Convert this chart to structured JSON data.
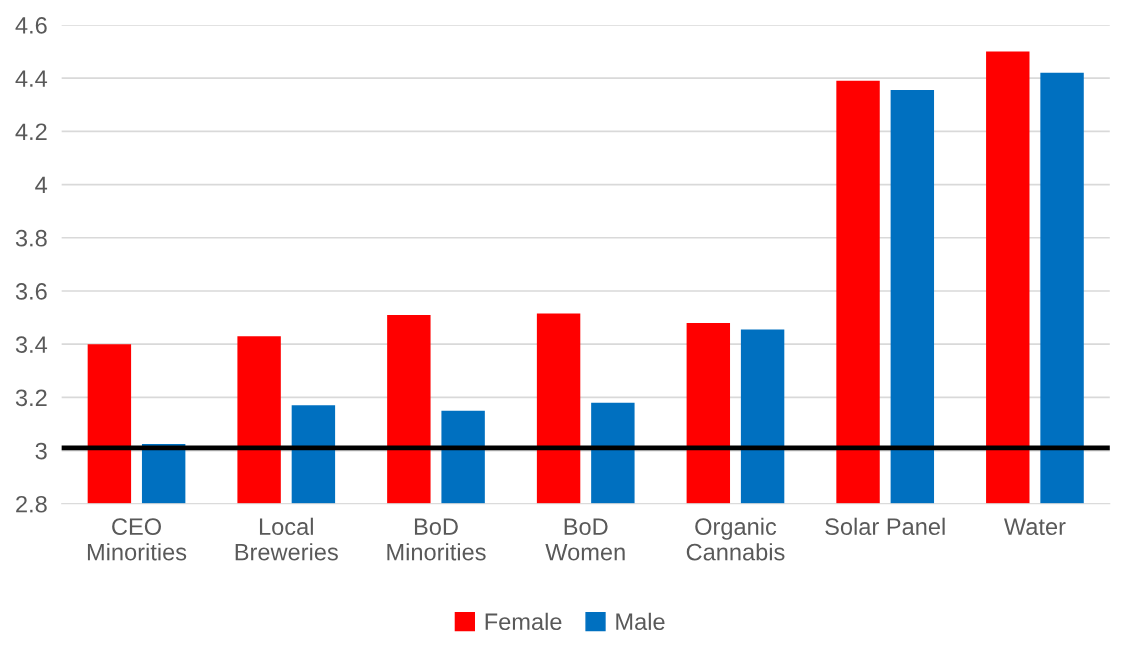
{
  "chart_data": {
    "type": "bar",
    "categories": [
      "CEO\nMinorities",
      "Local\nBreweries",
      "BoD\nMinorities",
      "BoD\nWomen",
      "Organic\nCannabis",
      "Solar Panel",
      "Water"
    ],
    "series": [
      {
        "name": "Female",
        "color": "#ff0000",
        "values": [
          3.4,
          3.43,
          3.51,
          3.515,
          3.48,
          4.39,
          4.5
        ]
      },
      {
        "name": "Male",
        "color": "#0070c0",
        "values": [
          3.025,
          3.17,
          3.15,
          3.18,
          3.455,
          4.355,
          4.42
        ]
      }
    ],
    "ylim": [
      2.8,
      4.6
    ],
    "yticks": [
      2.8,
      3,
      3.2,
      3.4,
      3.6,
      3.8,
      4,
      4.2,
      4.4,
      4.6
    ],
    "ref_lines": [
      {
        "axis": "y",
        "value": 3.01,
        "color": "#000000"
      }
    ],
    "grid": "y",
    "legend": "bottom"
  }
}
